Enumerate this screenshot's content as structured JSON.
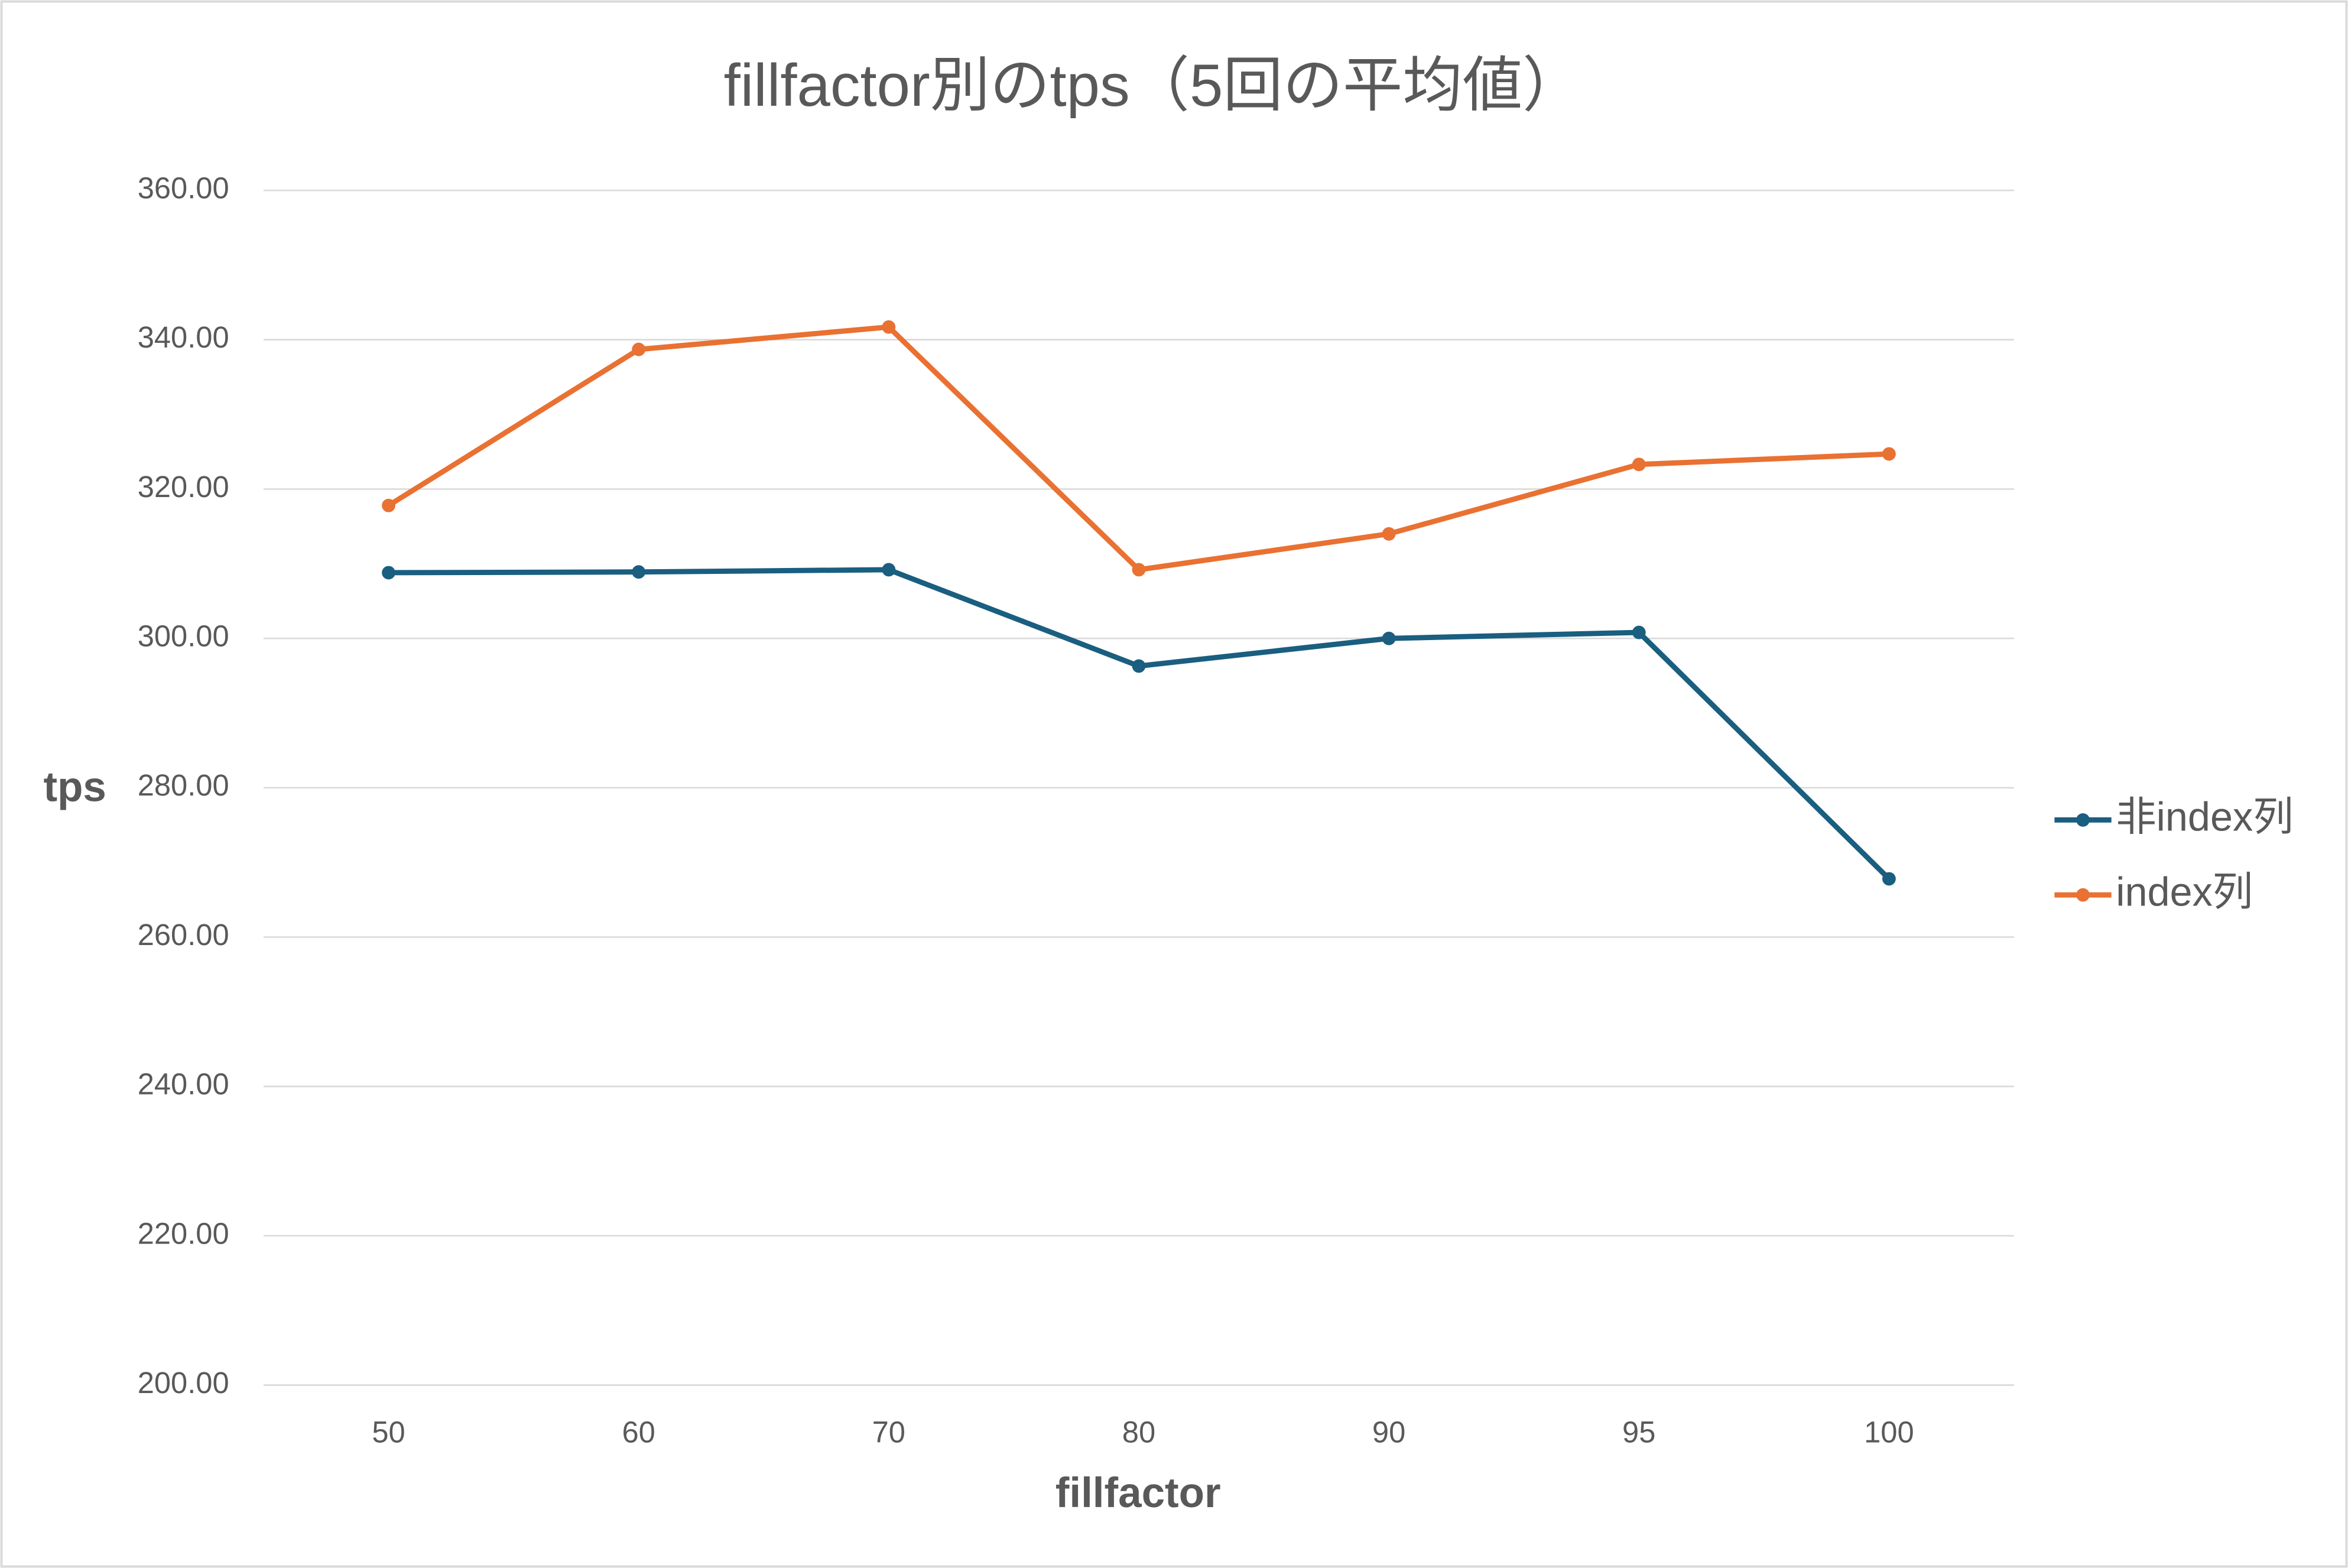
{
  "chart_data": {
    "type": "line",
    "title": "fillfactor別のtps（5回の平均値）",
    "x_label": "fillfactor",
    "y_label": "tps",
    "categories": [
      "50",
      "60",
      "70",
      "80",
      "90",
      "95",
      "100"
    ],
    "series": [
      {
        "name": "非index列",
        "color": "#1a5e80",
        "values": [
          308.8,
          308.9,
          309.2,
          296.3,
          300.0,
          300.8,
          267.8
        ]
      },
      {
        "name": "index列",
        "color": "#e97132",
        "values": [
          317.8,
          338.7,
          341.7,
          309.2,
          314.0,
          323.3,
          324.7
        ]
      }
    ],
    "ylim": [
      200,
      360
    ],
    "yticks": [
      {
        "value": 200,
        "label": "200.00"
      },
      {
        "value": 220,
        "label": "220.00"
      },
      {
        "value": 240,
        "label": "240.00"
      },
      {
        "value": 260,
        "label": "260.00"
      },
      {
        "value": 280,
        "label": "280.00"
      },
      {
        "value": 300,
        "label": "300.00"
      },
      {
        "value": 320,
        "label": "320.00"
      },
      {
        "value": 340,
        "label": "340.00"
      },
      {
        "value": 360,
        "label": "360.00"
      }
    ],
    "grid": true,
    "legend": "right"
  }
}
